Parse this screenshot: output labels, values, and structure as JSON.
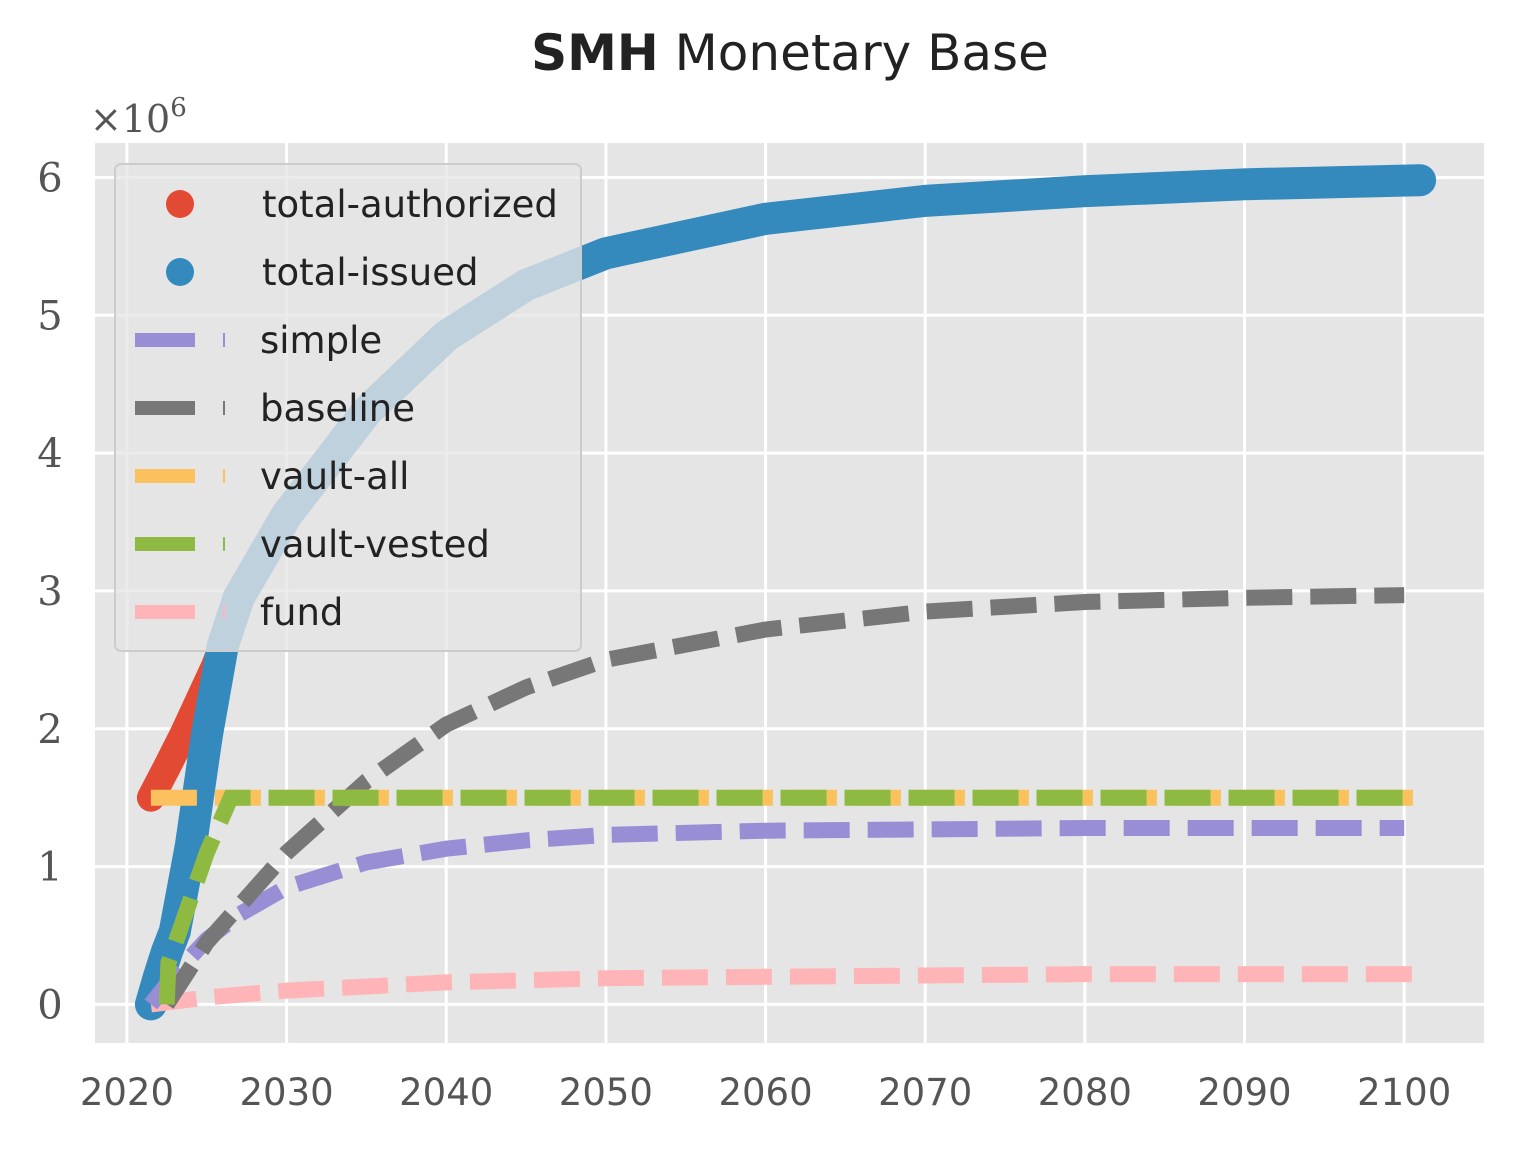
{
  "chart_data": {
    "type": "line",
    "title_bold": "SMH",
    "title_rest": " Monetary Base",
    "xlabel": "",
    "ylabel": "",
    "y_multiplier": {
      "base": "×10",
      "exponent": "6"
    },
    "xlim": [
      2018,
      2105
    ],
    "ylim": [
      -0.28,
      6.25
    ],
    "x_ticks": [
      2020,
      2030,
      2040,
      2050,
      2060,
      2070,
      2080,
      2090,
      2100
    ],
    "y_ticks": [
      0,
      1,
      2,
      3,
      4,
      5,
      6
    ],
    "grid": true,
    "legend_position": "upper-left",
    "colors": {
      "background": "#e5e5e5",
      "grid": "#ffffff",
      "total_authorized": "#e24a33",
      "total_issued": "#348abd",
      "simple": "#988ed5",
      "baseline": "#777777",
      "vault_all": "#fbc15e",
      "vault_vested": "#8eba42",
      "fund": "#ffb5b8"
    },
    "series": [
      {
        "name": "total-authorized",
        "style": "markers",
        "color": "#e24a33",
        "x": [
          2021.5,
          2022.5,
          2023.5,
          2024.5,
          2025.5,
          2026.0
        ],
        "y": [
          1.5,
          1.72,
          1.95,
          2.2,
          2.45,
          2.6
        ]
      },
      {
        "name": "total-issued",
        "style": "markers",
        "color": "#348abd",
        "x": [
          2021.5,
          2022.0,
          2022.5,
          2023.0,
          2024.0,
          2025.0,
          2026.0,
          2027.0,
          2030.0,
          2035.0,
          2040.0,
          2045.0,
          2050.0,
          2060.0,
          2070.0,
          2080.0,
          2090.0,
          2101.0
        ],
        "y": [
          0.0,
          0.2,
          0.38,
          0.53,
          1.15,
          1.95,
          2.6,
          2.95,
          3.55,
          4.3,
          4.85,
          5.22,
          5.45,
          5.7,
          5.83,
          5.9,
          5.95,
          5.98
        ]
      },
      {
        "name": "simple",
        "style": "dashed",
        "color": "#988ed5",
        "x": [
          2021.5,
          2023.0,
          2025.0,
          2027.0,
          2030.0,
          2035.0,
          2040.0,
          2045.0,
          2050.0,
          2060.0,
          2070.0,
          2080.0,
          2090.0,
          2100.0
        ],
        "y": [
          0.0,
          0.22,
          0.47,
          0.65,
          0.85,
          1.03,
          1.13,
          1.19,
          1.23,
          1.26,
          1.27,
          1.28,
          1.28,
          1.28
        ]
      },
      {
        "name": "baseline",
        "style": "dashed",
        "color": "#777777",
        "x": [
          2022.5,
          2025.0,
          2030.0,
          2035.0,
          2040.0,
          2045.0,
          2050.0,
          2060.0,
          2070.0,
          2080.0,
          2090.0,
          2100.0
        ],
        "y": [
          0.0,
          0.45,
          1.1,
          1.62,
          2.03,
          2.3,
          2.5,
          2.72,
          2.85,
          2.92,
          2.95,
          2.97
        ]
      },
      {
        "name": "vault-all",
        "style": "dashed",
        "color": "#fbc15e",
        "x": [
          2021.5,
          2101.0
        ],
        "y": [
          1.5,
          1.5
        ]
      },
      {
        "name": "vault-vested",
        "style": "dashed",
        "color": "#8eba42",
        "x": [
          2022.5,
          2022.6,
          2023.5,
          2025.0,
          2026.5,
          2030.0,
          2101.0
        ],
        "y": [
          0.0,
          0.3,
          0.6,
          1.1,
          1.5,
          1.5,
          1.5
        ]
      },
      {
        "name": "fund",
        "style": "dashed",
        "color": "#ffb5b8",
        "x": [
          2021.5,
          2025.0,
          2030.0,
          2035.0,
          2040.0,
          2050.0,
          2060.0,
          2070.0,
          2080.0,
          2090.0,
          2101.0
        ],
        "y": [
          0.0,
          0.05,
          0.1,
          0.13,
          0.16,
          0.19,
          0.2,
          0.21,
          0.22,
          0.22,
          0.22
        ]
      }
    ]
  }
}
